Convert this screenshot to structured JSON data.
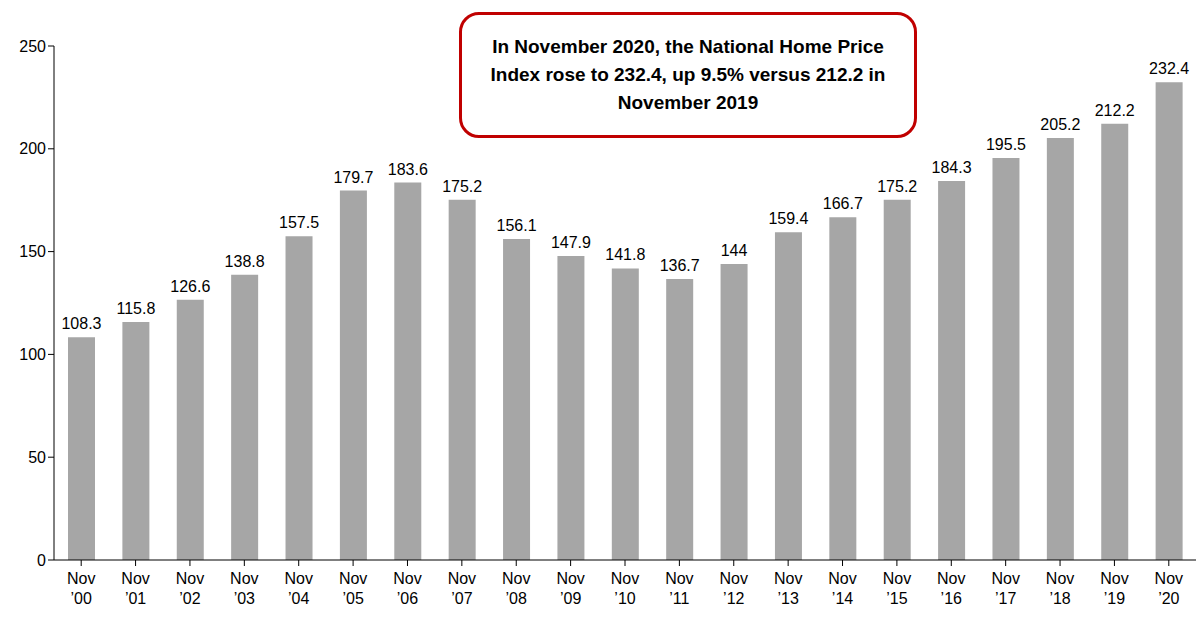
{
  "chart_data": {
    "type": "bar",
    "annotation": "In November 2020, the National Home Price Index rose to 232.4, up 9.5% versus 212.2 in November 2019",
    "categories": [
      "Nov ’00",
      "Nov ’01",
      "Nov ’02",
      "Nov ’03",
      "Nov ’04",
      "Nov ’05",
      "Nov ’06",
      "Nov ’07",
      "Nov ’08",
      "Nov ’09",
      "Nov ’10",
      "Nov ’11",
      "Nov ’12",
      "Nov ’13",
      "Nov ’14",
      "Nov ’15",
      "Nov ’16",
      "Nov ’17",
      "Nov ’18",
      "Nov ’19",
      "Nov ’20"
    ],
    "values": [
      108.3,
      115.8,
      126.6,
      138.8,
      157.5,
      179.7,
      183.6,
      175.2,
      156.1,
      147.9,
      141.8,
      136.7,
      144,
      159.4,
      166.7,
      175.2,
      184.3,
      195.5,
      205.2,
      212.2,
      232.4
    ],
    "color": "#a6a6a6",
    "ylim": [
      0,
      250
    ],
    "yticks": [
      0,
      50,
      100,
      150,
      200,
      250
    ],
    "grid": false,
    "data_labels": true
  }
}
